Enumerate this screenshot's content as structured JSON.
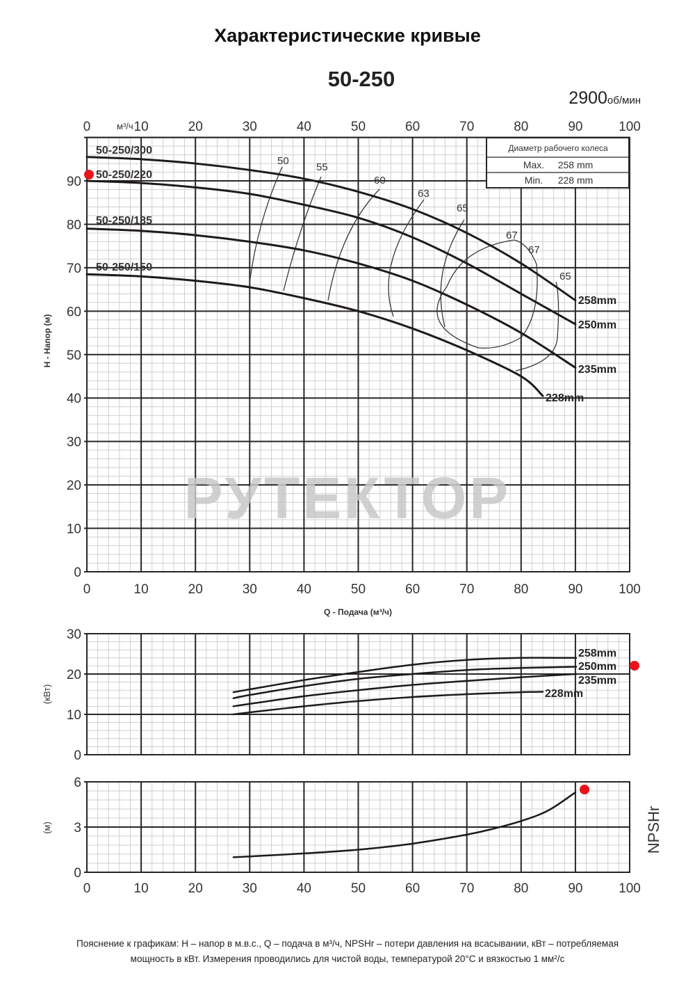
{
  "header": {
    "title": "Характеристические кривые",
    "model": "50-250",
    "speed_value": "2900",
    "speed_unit": "об/мин"
  },
  "impeller_table": {
    "heading": "Диаметр рабочего колеса",
    "max_label": "Max.",
    "max_value": "258  mm",
    "min_label": "Min.",
    "min_value": "228  mm"
  },
  "watermark": "РУТЕКТОР",
  "labels": {
    "top_axis_unit": "м³/ч",
    "h_axis": "H - Напор (м)",
    "q_axis": "Q - Подача (м³/ч)",
    "power_axis": "(кВт)",
    "npsh_axis": "(м)",
    "npsh_title": "NPSHr"
  },
  "note": {
    "line1": "Пояснение к графикам: H – напор в м.в.с., Q – подача в м³/ч, NPSHr – потери давления на всасывании, кВт – потребляемая",
    "line2": "мощность в кВт. Измерения проводились для чистой воды, температурой 20°C и вязкостью 1 мм²/с"
  },
  "colors": {
    "curve": "#1e1a1a",
    "grid_major": "#2a2525",
    "grid_minor": "#cfcfcf",
    "marker": "#e8141c",
    "watermark": "#c8c8c8"
  },
  "chart_data": [
    {
      "type": "line",
      "title": "H-Q характеристика 50-250",
      "xlabel": "Q - Подача (м³/ч)",
      "ylabel": "H - Напор (м)",
      "xlim": [
        0,
        100
      ],
      "ylim": [
        0,
        100
      ],
      "x_ticks": [
        0,
        10,
        20,
        30,
        40,
        50,
        60,
        70,
        80,
        90,
        100
      ],
      "y_ticks": [
        0,
        10,
        20,
        30,
        40,
        50,
        60,
        70,
        80,
        90
      ],
      "grid": true,
      "series": [
        {
          "name": "258mm",
          "x": [
            0,
            10,
            20,
            30,
            40,
            50,
            60,
            70,
            80,
            90
          ],
          "values": [
            95.5,
            95,
            94,
            92.5,
            90.5,
            87.5,
            83.5,
            78,
            71,
            62.5
          ]
        },
        {
          "name": "250mm",
          "x": [
            0,
            10,
            20,
            30,
            40,
            50,
            60,
            70,
            80,
            90
          ],
          "values": [
            90,
            89.5,
            88.5,
            87,
            84.5,
            81.5,
            77,
            71,
            64,
            57
          ]
        },
        {
          "name": "235mm",
          "x": [
            0,
            10,
            20,
            30,
            40,
            50,
            60,
            70,
            80,
            90
          ],
          "values": [
            79,
            78.5,
            77.5,
            76,
            74,
            71,
            67,
            61.5,
            55,
            47
          ]
        },
        {
          "name": "228mm",
          "x": [
            0,
            10,
            20,
            30,
            40,
            50,
            60,
            70,
            80,
            84
          ],
          "values": [
            68.5,
            68,
            67,
            65.5,
            63,
            60,
            56,
            51,
            45,
            40.5
          ]
        }
      ],
      "model_labels": [
        "50-250/300",
        "50-250/220",
        "50-250/185",
        "50-250/150"
      ],
      "efficiency_labels": [
        "50",
        "55",
        "60",
        "63",
        "65",
        "67",
        "67",
        "65"
      ],
      "annotations": [
        {
          "type": "marker",
          "x": 0,
          "y": 91,
          "color": "#e8141c"
        }
      ]
    },
    {
      "type": "line",
      "title": "Потребляемая мощность",
      "xlabel": "Q - Подача (м³/ч)",
      "ylabel": "(кВт)",
      "xlim": [
        0,
        100
      ],
      "ylim": [
        0,
        30
      ],
      "y_ticks": [
        0,
        10,
        20,
        30
      ],
      "grid": true,
      "series": [
        {
          "name": "258mm",
          "x": [
            27,
            30,
            40,
            50,
            60,
            70,
            80,
            90
          ],
          "values": [
            15.5,
            16.2,
            18.5,
            20.5,
            22.3,
            23.5,
            24,
            24
          ]
        },
        {
          "name": "250mm",
          "x": [
            27,
            30,
            40,
            50,
            60,
            70,
            80,
            90
          ],
          "values": [
            14,
            14.8,
            17,
            18.8,
            20,
            21,
            21.5,
            21.8
          ]
        },
        {
          "name": "235mm",
          "x": [
            27,
            30,
            40,
            50,
            60,
            70,
            80,
            90
          ],
          "values": [
            12,
            12.6,
            14.5,
            16,
            17.3,
            18.3,
            19.2,
            20
          ]
        },
        {
          "name": "228mm",
          "x": [
            27,
            30,
            40,
            50,
            60,
            70,
            80,
            84
          ],
          "values": [
            10,
            10.5,
            12,
            13.3,
            14.3,
            15,
            15.5,
            15.6
          ]
        }
      ],
      "annotations": [
        {
          "type": "marker",
          "x": 101,
          "y": 22.2,
          "color": "#e8141c"
        }
      ]
    },
    {
      "type": "line",
      "title": "NPSHr",
      "xlabel": "Q - Подача (м³/ч)",
      "ylabel": "(м)",
      "xlim": [
        0,
        100
      ],
      "ylim": [
        0,
        6
      ],
      "y_ticks": [
        0,
        3,
        6
      ],
      "x_ticks": [
        0,
        10,
        20,
        30,
        40,
        50,
        60,
        70,
        80,
        90,
        100
      ],
      "grid": true,
      "series": [
        {
          "name": "NPSHr",
          "x": [
            27,
            30,
            40,
            50,
            60,
            70,
            75,
            80,
            85,
            90
          ],
          "values": [
            1.0,
            1.05,
            1.25,
            1.5,
            1.9,
            2.5,
            2.9,
            3.4,
            4.1,
            5.3
          ]
        }
      ],
      "annotations": [
        {
          "type": "marker",
          "x": 92,
          "y": 5.5,
          "color": "#e8141c"
        }
      ]
    }
  ]
}
